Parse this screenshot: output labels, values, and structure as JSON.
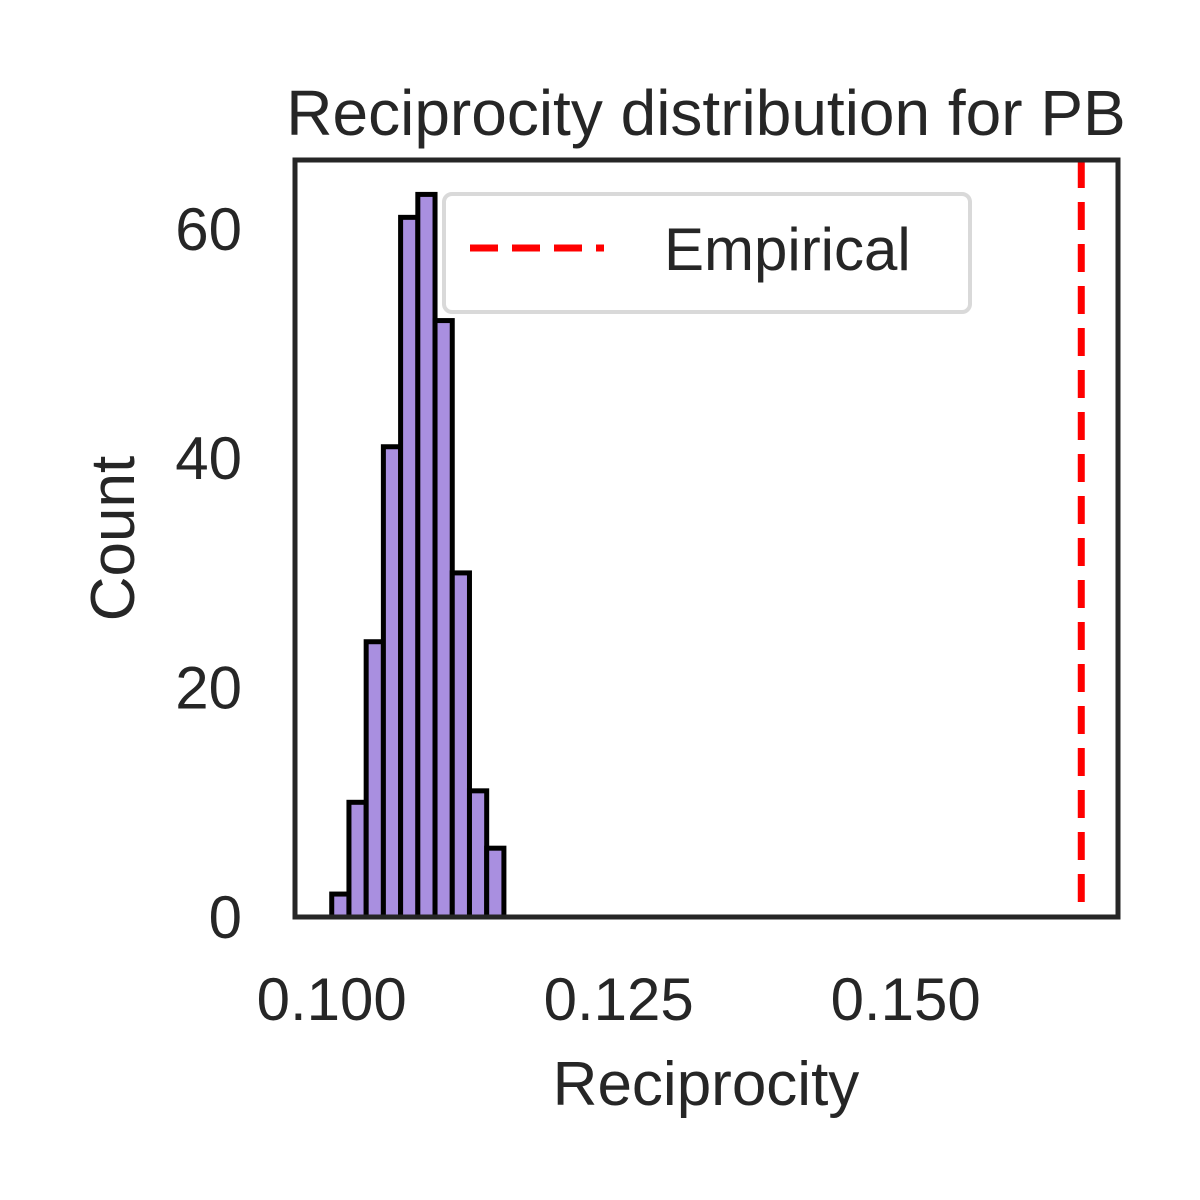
{
  "chart_data": {
    "type": "bar",
    "title": "Reciprocity distribution for PB",
    "xlabel": "Reciprocity",
    "ylabel": "Count",
    "xlim": [
      0.0968,
      0.1685
    ],
    "ylim": [
      0,
      66
    ],
    "xticks": [
      0.1,
      0.125,
      0.15
    ],
    "xtick_labels": [
      "0.100",
      "0.125",
      "0.150"
    ],
    "yticks": [
      0,
      20,
      40,
      60
    ],
    "ytick_labels": [
      "0",
      "20",
      "40",
      "60"
    ],
    "grid": false,
    "bin_width": 0.0015,
    "bins": [
      {
        "x0": 0.1,
        "x1": 0.1015,
        "count": 2
      },
      {
        "x0": 0.1015,
        "x1": 0.103,
        "count": 10
      },
      {
        "x0": 0.103,
        "x1": 0.1045,
        "count": 24
      },
      {
        "x0": 0.1045,
        "x1": 0.106,
        "count": 41
      },
      {
        "x0": 0.106,
        "x1": 0.1075,
        "count": 61
      },
      {
        "x0": 0.1075,
        "x1": 0.109,
        "count": 63
      },
      {
        "x0": 0.109,
        "x1": 0.1105,
        "count": 52
      },
      {
        "x0": 0.1105,
        "x1": 0.112,
        "count": 30
      },
      {
        "x0": 0.112,
        "x1": 0.1135,
        "count": 11
      },
      {
        "x0": 0.1135,
        "x1": 0.115,
        "count": 6
      }
    ],
    "bar_color": "#a98fe0",
    "bar_edge_color": "#000000",
    "empirical": {
      "name": "Empirical",
      "value": 0.1653,
      "color": "#ff0000"
    },
    "legend_position": "top-right"
  }
}
